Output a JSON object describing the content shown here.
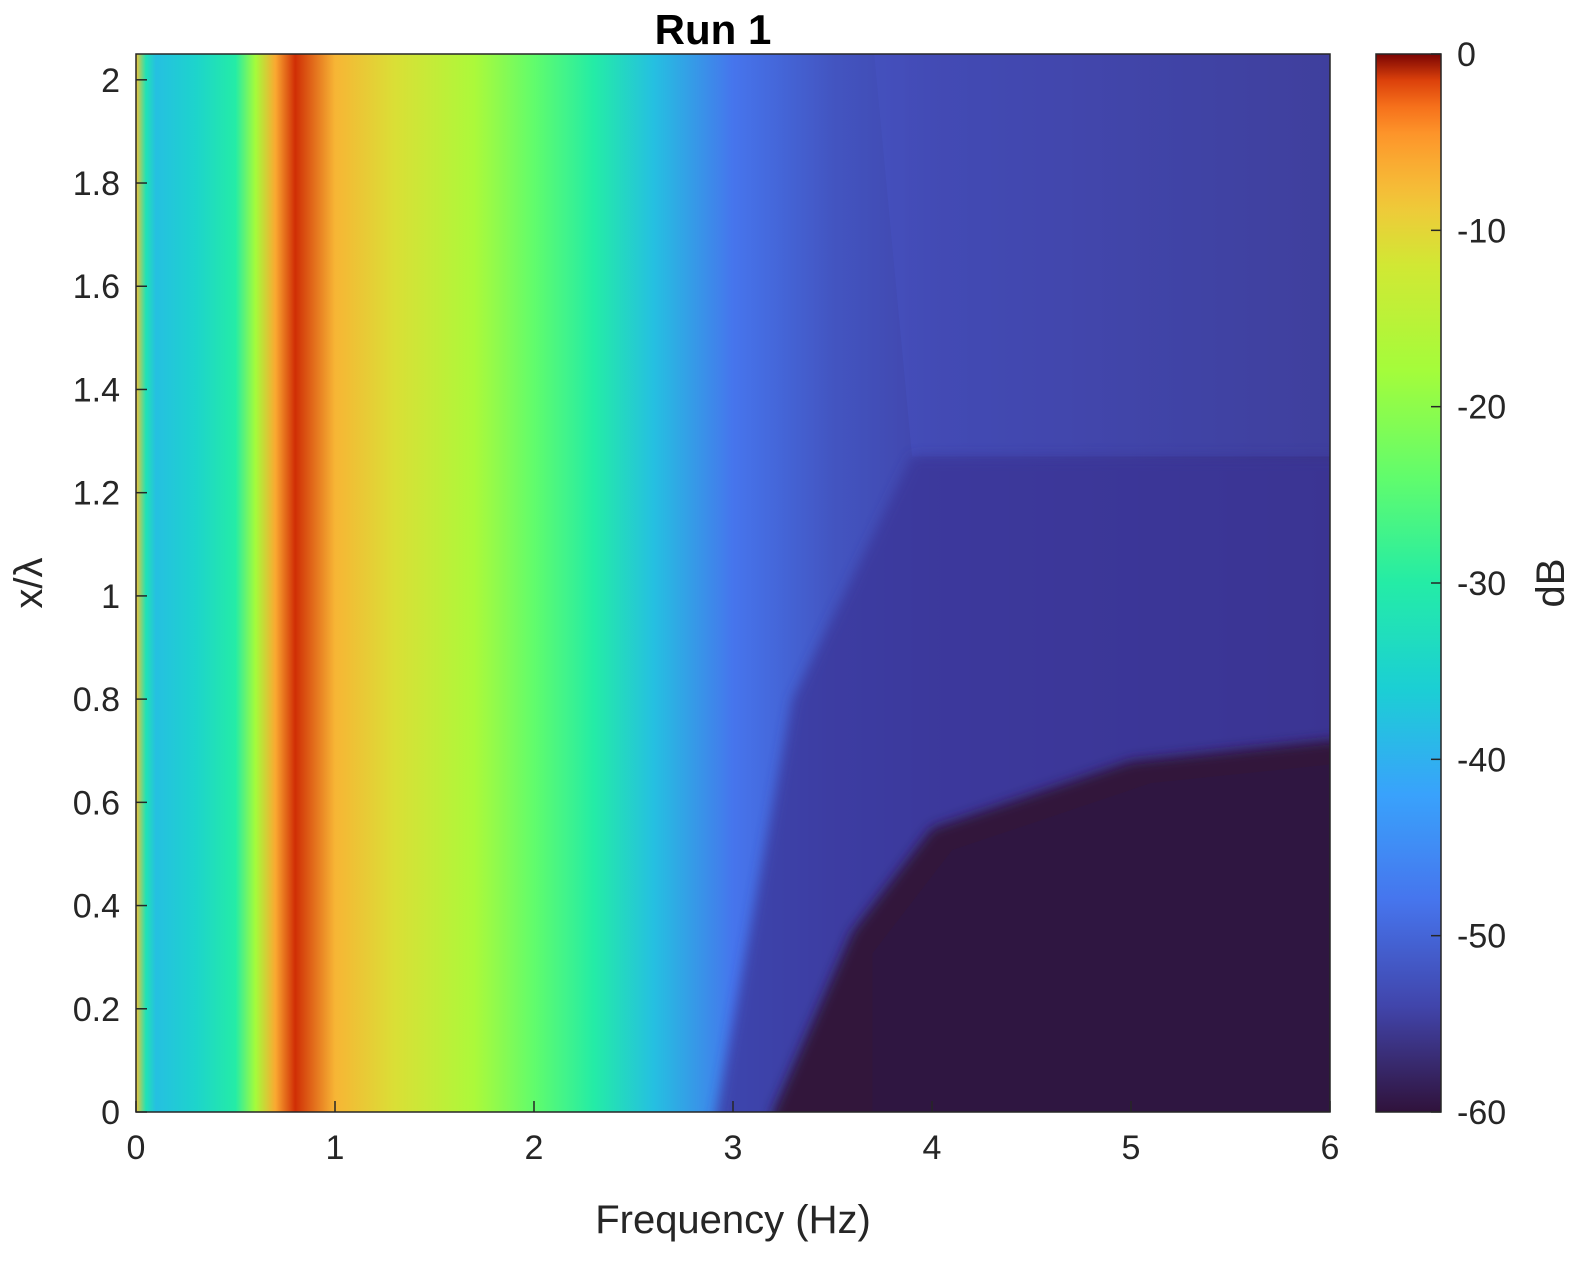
{
  "chart_data": {
    "type": "heatmap",
    "title": "Run 1",
    "xlabel": "Frequency (Hz)",
    "ylabel": "x/λ",
    "xlim": [
      0,
      6
    ],
    "ylim": [
      0,
      2.05
    ],
    "x_ticks": [
      "0",
      "1",
      "2",
      "3",
      "4",
      "5",
      "6"
    ],
    "y_ticks": [
      "0",
      "0.2",
      "0.4",
      "0.6",
      "0.8",
      "1",
      "1.2",
      "1.4",
      "1.6",
      "1.8",
      "2"
    ],
    "colorbar": {
      "label": "dB",
      "range": [
        -60,
        0
      ],
      "ticks": [
        "0",
        "-10",
        "-20",
        "-30",
        "-40",
        "-50",
        "-60"
      ],
      "colormap": "turbo"
    },
    "frequency_profile_db": [
      {
        "f": 0.0,
        "db": -8
      },
      {
        "f": 0.05,
        "db": -32
      },
      {
        "f": 0.1,
        "db": -38
      },
      {
        "f": 0.3,
        "db": -35
      },
      {
        "f": 0.5,
        "db": -30
      },
      {
        "f": 0.6,
        "db": -18
      },
      {
        "f": 0.7,
        "db": -6
      },
      {
        "f": 0.8,
        "db": -1
      },
      {
        "f": 1.0,
        "db": -7
      },
      {
        "f": 1.3,
        "db": -11
      },
      {
        "f": 1.7,
        "db": -17
      },
      {
        "f": 2.0,
        "db": -24
      },
      {
        "f": 2.3,
        "db": -30
      },
      {
        "f": 2.6,
        "db": -38
      },
      {
        "f": 3.0,
        "db": -48
      },
      {
        "f": 3.5,
        "db": -52
      },
      {
        "f": 4.0,
        "db": -54
      },
      {
        "f": 5.0,
        "db": -55
      },
      {
        "f": 6.0,
        "db": -56
      }
    ],
    "low_region_db": -60,
    "low_region_boundary": [
      {
        "f": 3.2,
        "x": 0.0
      },
      {
        "f": 3.6,
        "x": 0.35
      },
      {
        "f": 4.0,
        "x": 0.55
      },
      {
        "f": 5.0,
        "x": 0.68
      },
      {
        "f": 6.0,
        "x": 0.72
      }
    ],
    "upper_step_x": 1.27
  }
}
